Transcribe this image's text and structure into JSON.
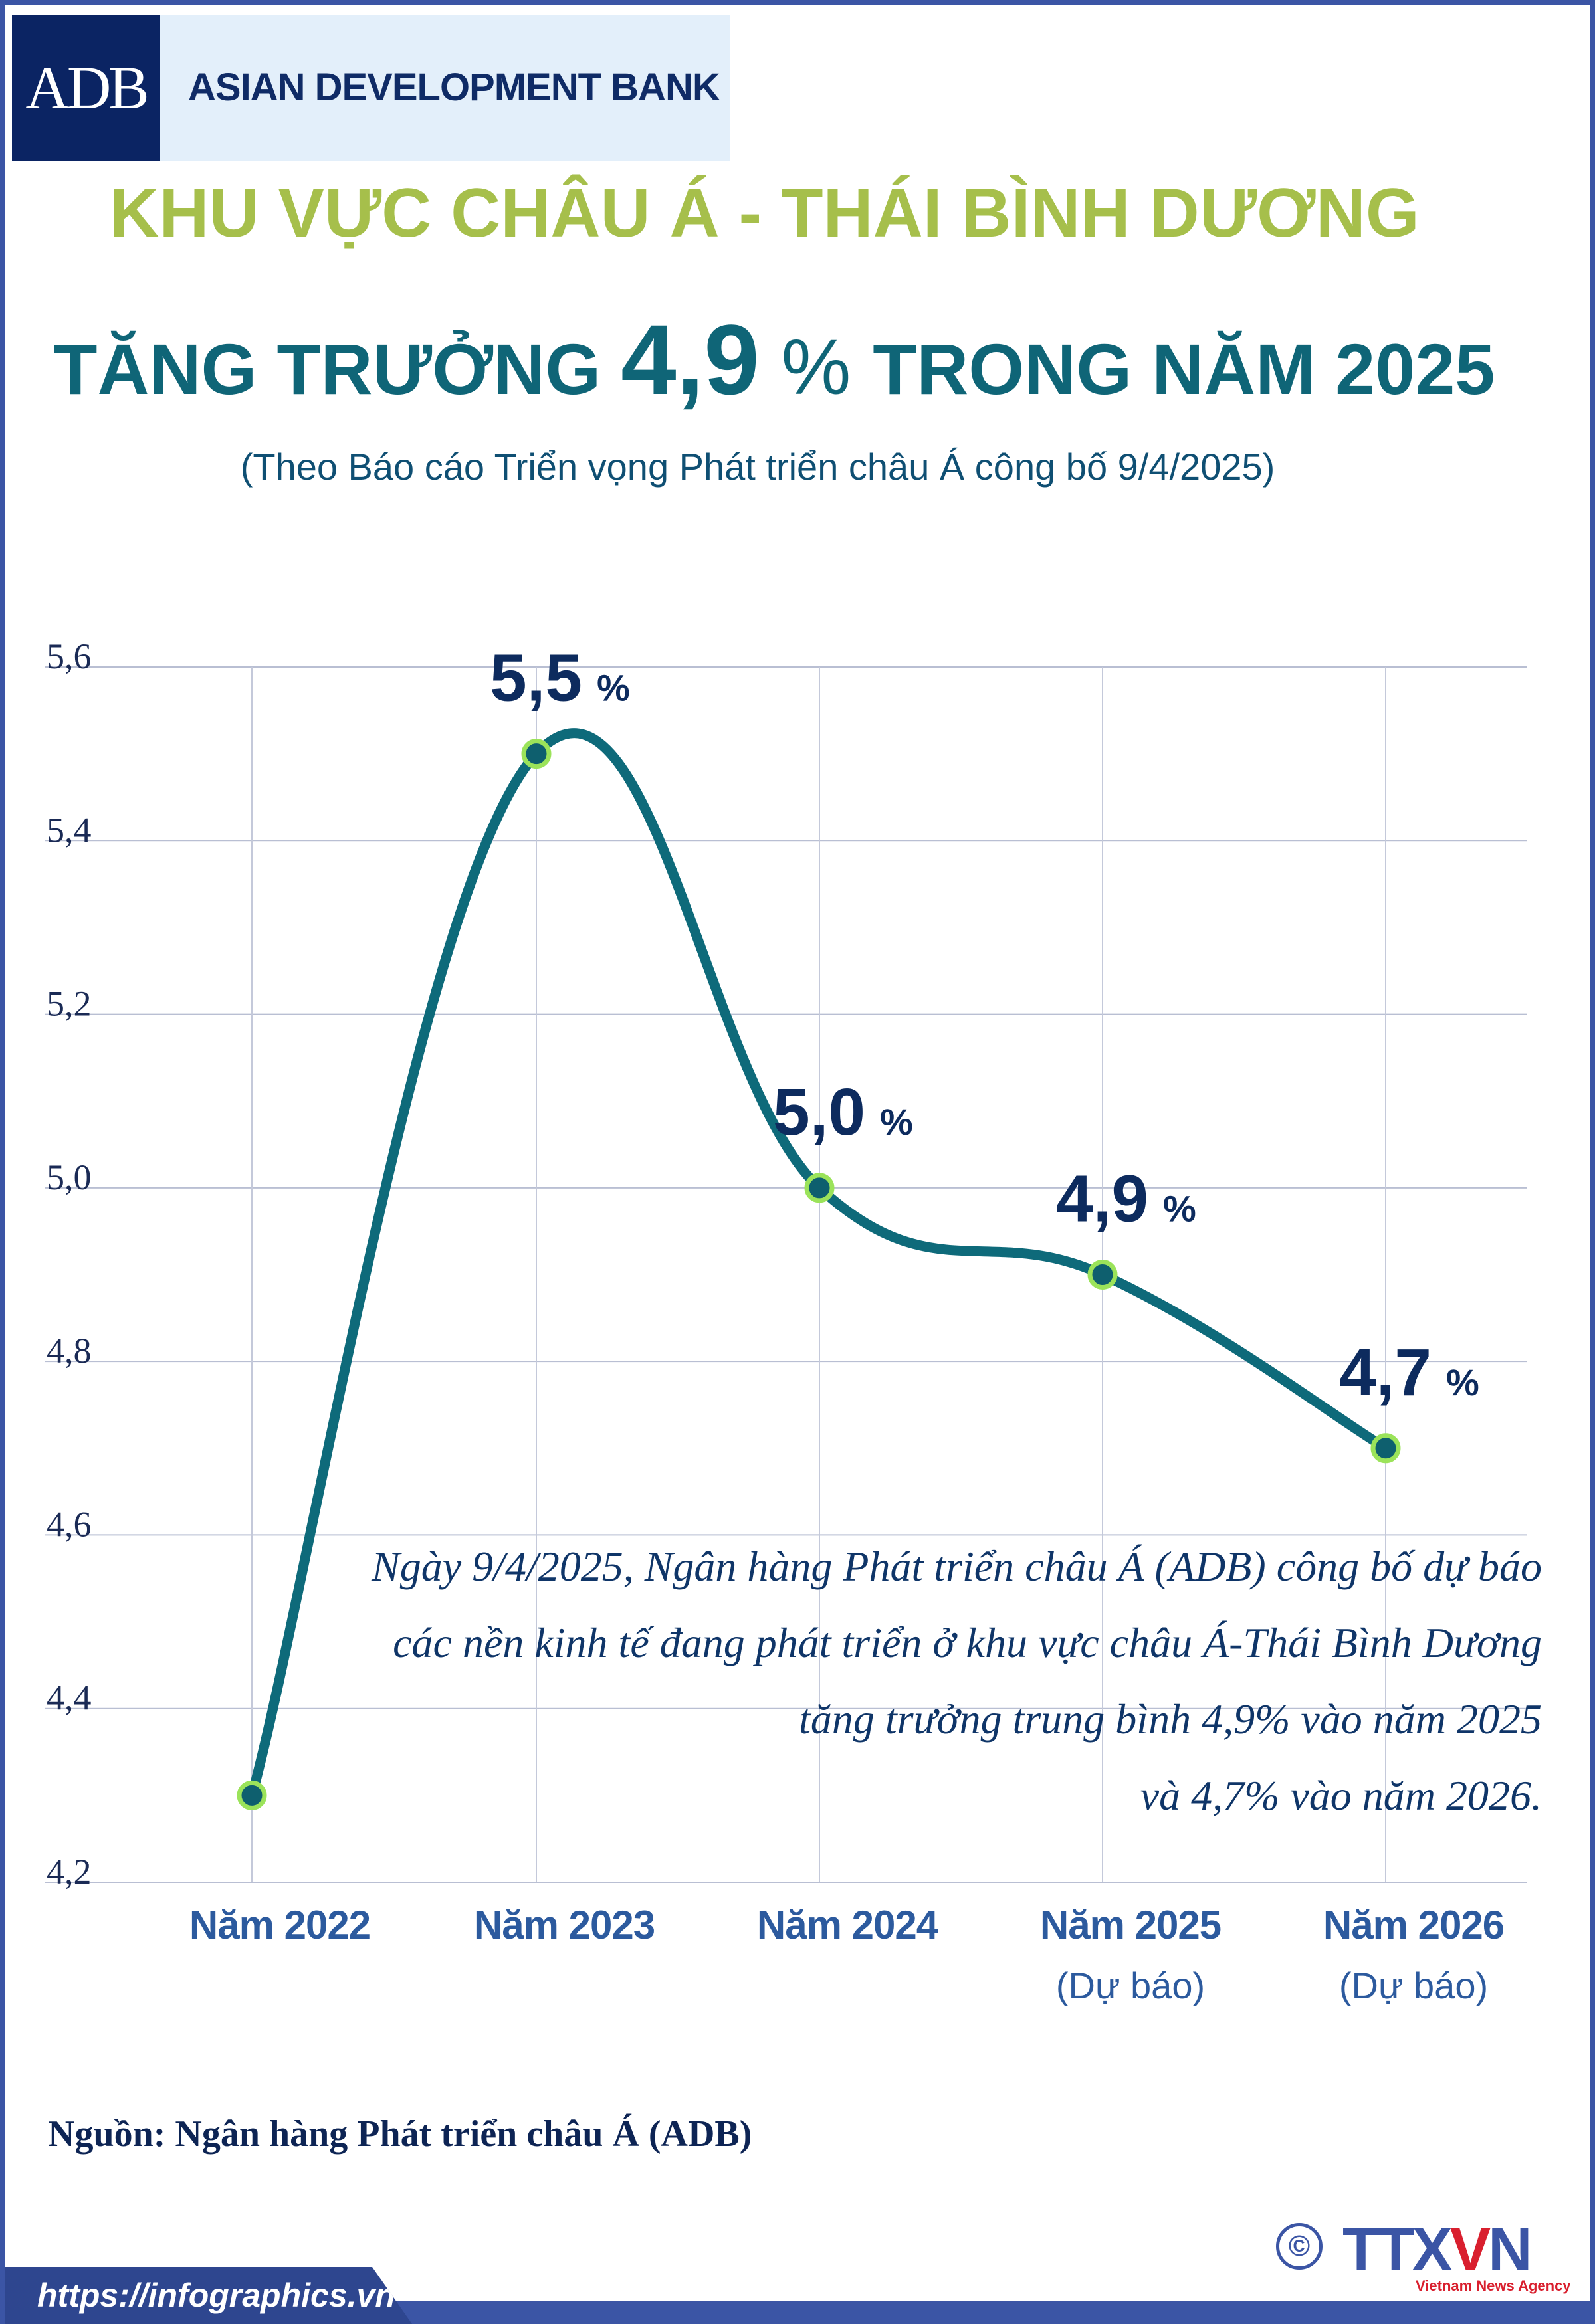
{
  "logo": {
    "mark": "ADB",
    "name": "ASIAN DEVELOPMENT BANK"
  },
  "header": {
    "title1": "KHU VỰC CHÂU Á - THÁI BÌNH DƯƠNG",
    "title2_pre": "TĂNG TRƯỞNG ",
    "title2_value": "4,9",
    "title2_pct": " % ",
    "title2_post": "TRONG NĂM 2025",
    "subtitle": "(Theo Báo cáo Triển vọng Phát triển châu Á công bố 9/4/2025)"
  },
  "chart_data": {
    "type": "line",
    "categories": [
      "Năm 2022",
      "Năm 2023",
      "Năm 2024",
      "Năm 2025",
      "Năm 2026"
    ],
    "category_notes": [
      "",
      "",
      "",
      "(Dự báo)",
      "(Dự báo)"
    ],
    "values": [
      4.3,
      5.5,
      5.0,
      4.9,
      4.7
    ],
    "data_labels": [
      "",
      "5,5",
      "5,0",
      "4,9",
      "4,7"
    ],
    "data_label_unit": "%",
    "yticks": [
      "4,2",
      "4,4",
      "4,6",
      "4,8",
      "5,0",
      "5,2",
      "5,4",
      "5,6"
    ],
    "ylim": [
      4.2,
      5.6
    ],
    "grid": true,
    "line_color": "#0e6a7a",
    "marker_fill": "#0e5f6e",
    "marker_stroke": "#9be35a"
  },
  "annotation": [
    "Ngày 9/4/2025, Ngân hàng Phát triển châu Á (ADB) công bố dự báo",
    "các nền kinh tế đang phát triển ở khu vực châu Á-Thái Bình Dương",
    "tăng trưởng trung bình 4,9% vào năm 2025",
    "và 4,7% vào năm 2026."
  ],
  "source": "Nguồn: Ngân hàng Phát triển châu Á (ADB)",
  "footer": {
    "url": "https://infographics.vn",
    "copyright": "©",
    "brand_a": "TTX",
    "brand_v": "V",
    "brand_b": "N",
    "brand_sub": "Vietnam News Agency"
  }
}
